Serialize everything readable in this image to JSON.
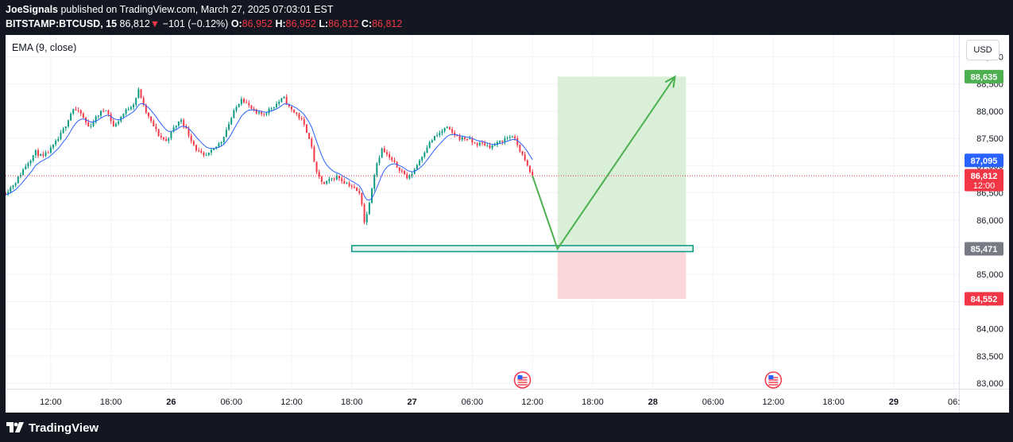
{
  "header": {
    "publisher": "JoeSignals",
    "published_text": " published on TradingView.com, March 27, 2025 07:03:01 EST",
    "symbol": "BITSTAMP:BTCUSD, 15",
    "last_price": "86,812",
    "change_arrow": "▼",
    "change": "−101 (−0.12%)",
    "o_label": "O:",
    "o_value": "86,952",
    "h_label": "H:",
    "h_value": "86,952",
    "l_label": "L:",
    "l_value": "86,812",
    "c_label": "C:",
    "c_value": "86,812"
  },
  "indicator_label": "EMA (9, close)",
  "currency_button": "USD",
  "footer": {
    "brand": "TradingView"
  },
  "colors": {
    "up": "#089981",
    "down": "#f23645",
    "ema": "#2962ff",
    "profit_zone": "#d9efd7",
    "loss_zone": "#fbd6da",
    "arrow": "#4caf50",
    "entry_box": "#089981",
    "tag_target": "#4caf50",
    "tag_ema": "#2962ff",
    "tag_last": "#f23645",
    "tag_entry": "#787b86",
    "tag_stop": "#f23645"
  },
  "chart_data": {
    "type": "candlestick",
    "title": "BITSTAMP:BTCUSD, 15",
    "ylim": [
      82900,
      89400
    ],
    "y_ticks": [
      83000,
      83500,
      84000,
      84500,
      85000,
      85500,
      86000,
      86500,
      87000,
      87500,
      88000,
      88500,
      89000
    ],
    "y_tick_labels": [
      "83,000",
      "83,500",
      "84,000",
      "84,500",
      "85,000",
      "85,500",
      "86,000",
      "86,500",
      "87,000",
      "87,500",
      "88,000",
      "88,500",
      "89,000"
    ],
    "x_ticks": [
      {
        "t": 0,
        "label": "12:00"
      },
      {
        "t": 6,
        "label": "18:00"
      },
      {
        "t": 12,
        "label": "26"
      },
      {
        "t": 18,
        "label": "06:00"
      },
      {
        "t": 24,
        "label": "12:00"
      },
      {
        "t": 30,
        "label": "18:00"
      },
      {
        "t": 36,
        "label": "27"
      },
      {
        "t": 42,
        "label": "06:00"
      },
      {
        "t": 48,
        "label": "12:00"
      },
      {
        "t": 54,
        "label": "18:00"
      },
      {
        "t": 60,
        "label": "28"
      },
      {
        "t": 66,
        "label": "06:00"
      },
      {
        "t": 72,
        "label": "12:00"
      },
      {
        "t": 78,
        "label": "18:00"
      },
      {
        "t": 84,
        "label": "29"
      },
      {
        "t": 90,
        "label": "06:"
      }
    ],
    "x_range_hours": [
      -4.5,
      90.5
    ],
    "close_path": [
      [
        -4.5,
        86500
      ],
      [
        -3.5,
        86700
      ],
      [
        -2.5,
        87000
      ],
      [
        -1.5,
        87250
      ],
      [
        -0.8,
        87150
      ],
      [
        0,
        87300
      ],
      [
        0.8,
        87500
      ],
      [
        1.5,
        87750
      ],
      [
        2.2,
        88050
      ],
      [
        3,
        87950
      ],
      [
        3.8,
        87700
      ],
      [
        4.8,
        87950
      ],
      [
        5.5,
        88050
      ],
      [
        6.3,
        87700
      ],
      [
        7,
        87900
      ],
      [
        7.7,
        88050
      ],
      [
        8.3,
        88150
      ],
      [
        8.8,
        88400
      ],
      [
        9.3,
        88050
      ],
      [
        10,
        87800
      ],
      [
        10.8,
        87550
      ],
      [
        11.5,
        87450
      ],
      [
        12.3,
        87700
      ],
      [
        13,
        87850
      ],
      [
        13.8,
        87550
      ],
      [
        14.5,
        87300
      ],
      [
        15.3,
        87150
      ],
      [
        16,
        87250
      ],
      [
        17,
        87450
      ],
      [
        17.7,
        87750
      ],
      [
        18.3,
        88000
      ],
      [
        19,
        88250
      ],
      [
        19.7,
        88100
      ],
      [
        20.5,
        87950
      ],
      [
        21.2,
        87950
      ],
      [
        21.9,
        88050
      ],
      [
        22.6,
        88150
      ],
      [
        23.2,
        88250
      ],
      [
        23.8,
        88050
      ],
      [
        24.5,
        87950
      ],
      [
        25.1,
        87800
      ],
      [
        25.8,
        87500
      ],
      [
        26.5,
        86850
      ],
      [
        27.2,
        86650
      ],
      [
        27.9,
        86750
      ],
      [
        28.6,
        86800
      ],
      [
        29.2,
        86700
      ],
      [
        29.8,
        86650
      ],
      [
        30.4,
        86550
      ],
      [
        30.9,
        86450
      ],
      [
        31.3,
        85900
      ],
      [
        31.8,
        86400
      ],
      [
        32.4,
        87000
      ],
      [
        33,
        87300
      ],
      [
        33.7,
        87150
      ],
      [
        34.4,
        87000
      ],
      [
        35,
        86900
      ],
      [
        35.6,
        86750
      ],
      [
        36.3,
        86950
      ],
      [
        36.9,
        87150
      ],
      [
        37.5,
        87350
      ],
      [
        38.1,
        87500
      ],
      [
        38.8,
        87600
      ],
      [
        39.4,
        87700
      ],
      [
        40,
        87600
      ],
      [
        40.8,
        87500
      ],
      [
        41.5,
        87500
      ],
      [
        42.2,
        87400
      ],
      [
        43,
        87400
      ],
      [
        43.8,
        87350
      ],
      [
        44.5,
        87400
      ],
      [
        45.3,
        87500
      ],
      [
        46,
        87550
      ],
      [
        46.6,
        87350
      ],
      [
        47.2,
        87100
      ],
      [
        47.7,
        86900
      ],
      [
        48,
        86812
      ]
    ],
    "ema_period": 9,
    "projection": {
      "path": [
        [
          48,
          86812
        ],
        [
          50.5,
          85471
        ],
        [
          62.2,
          88635
        ]
      ],
      "entry": 85471,
      "target": 88635,
      "stop": 84552,
      "zone_start": 50.5,
      "zone_end": 63.3,
      "support_zone": {
        "x0": 30,
        "x1": 64,
        "y0": 85420,
        "y1": 85530
      }
    },
    "price_tags": [
      {
        "label": "88,635",
        "kind": "target"
      },
      {
        "label": "87,095",
        "kind": "ema"
      },
      {
        "label": "86,812",
        "sub": "12:00",
        "kind": "last"
      },
      {
        "label": "85,471",
        "kind": "entry"
      },
      {
        "label": "84,552",
        "kind": "stop"
      }
    ],
    "tag_values": {
      "target": 88635,
      "ema": 87095,
      "last": 86812,
      "entry": 85471,
      "stop": 84552
    },
    "event_markers_hours": [
      47,
      72
    ]
  }
}
